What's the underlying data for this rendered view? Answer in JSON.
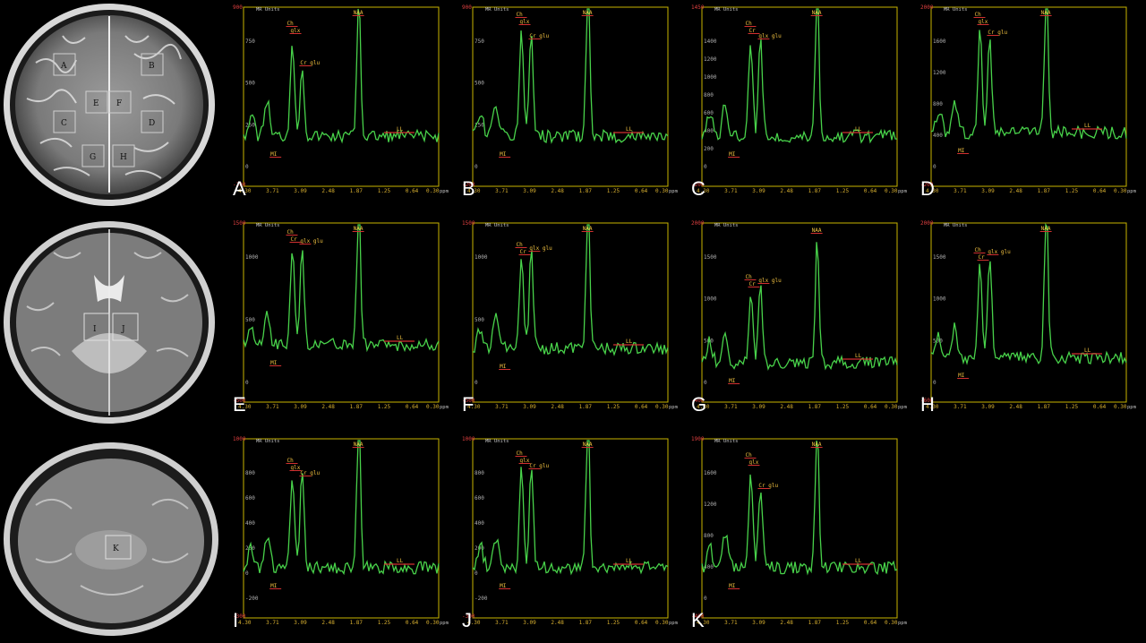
{
  "mri_images": [
    {
      "name": "mri-slice-top",
      "rois": [
        "A",
        "B",
        "C",
        "D",
        "E",
        "F",
        "G",
        "H"
      ]
    },
    {
      "name": "mri-slice-middle",
      "rois": [
        "I",
        "J"
      ]
    },
    {
      "name": "mri-slice-bottom",
      "rois": [
        "K"
      ]
    }
  ],
  "ppm_ticks": [
    "4.30",
    "3.71",
    "3.09",
    "2.48",
    "1.87",
    "1.25",
    "0.64",
    "0.30"
  ],
  "ppm_unit": "ppm",
  "y_unit": "MR Units",
  "colors": {
    "trace": "#48d24a",
    "frame": "#c8b400",
    "label": "#f0c040",
    "marker": "#d23030"
  },
  "spectra": [
    {
      "letter": "A",
      "ymax": "900",
      "ymin": "-200",
      "yticks": [
        "750",
        "500",
        "250",
        "0"
      ],
      "labels": {
        "naa": "NAA",
        "ch": "Ch",
        "cr": "glx",
        "glu": "Cr\nglu",
        "mi": "MI",
        "ll": "LL"
      }
    },
    {
      "letter": "B",
      "ymax": "900",
      "ymin": "-200",
      "yticks": [
        "750",
        "500",
        "250",
        "0"
      ],
      "labels": {
        "naa": "NAA",
        "ch": "Ch",
        "cr": "glx",
        "glu": "Cr glu",
        "mi": "MI",
        "ll": "LL"
      }
    },
    {
      "letter": "C",
      "ymax": "1450",
      "ymin": "-200",
      "yticks": [
        "1400",
        "1200",
        "1000",
        "800",
        "600",
        "400",
        "200",
        "0"
      ],
      "labels": {
        "naa": "NAA",
        "ch": "Ch",
        "cr": "Cr",
        "glu": "glx glu",
        "mi": "MI",
        "ll": "LL"
      }
    },
    {
      "letter": "D",
      "ymax": "2000",
      "ymin": "-200",
      "yticks": [
        "1600",
        "1200",
        "800",
        "400",
        "0"
      ],
      "labels": {
        "naa": "NAA",
        "ch": "Ch",
        "cr": "glx",
        "glu": "Cr glu",
        "mi": "MI",
        "ll": "LL"
      }
    },
    {
      "letter": "E",
      "ymax": "1500",
      "ymin": "-500",
      "yticks": [
        "1000",
        "500",
        "0"
      ],
      "labels": {
        "naa": "NAA",
        "ch": "Ch",
        "cr": "Cr",
        "glu": "glx glu",
        "mi": "MI",
        "ll": "LL"
      }
    },
    {
      "letter": "F",
      "ymax": "1500",
      "ymin": "-500",
      "yticks": [
        "1000",
        "500",
        "0"
      ],
      "labels": {
        "naa": "NAA",
        "ch": "Ch",
        "cr": "Cr",
        "glu": "glx glu",
        "mi": "MI",
        "ll": "LL"
      }
    },
    {
      "letter": "G",
      "ymax": "2000",
      "ymin": "-400",
      "yticks": [
        "1500",
        "1000",
        "500",
        "0"
      ],
      "labels": {
        "naa": "NAA",
        "ch": "Ch",
        "cr": "Cr",
        "glu": "glx glu",
        "mi": "MI",
        "ll": "LL"
      }
    },
    {
      "letter": "H",
      "ymax": "2000",
      "ymin": "-600",
      "yticks": [
        "1500",
        "1000",
        "500",
        "0"
      ],
      "labels": {
        "naa": "NAA",
        "ch": "Ch",
        "cr": "Cr",
        "glu": "glx glu",
        "mi": "MI",
        "ll": "LL"
      }
    },
    {
      "letter": "I",
      "ymax": "1000",
      "ymin": "-300",
      "yticks": [
        "800",
        "600",
        "400",
        "200",
        "0",
        "-200"
      ],
      "labels": {
        "naa": "NAA",
        "ch": "Ch",
        "cr": "glx",
        "glu": "Cr glu",
        "mi": "MI",
        "ll": "LL"
      }
    },
    {
      "letter": "J",
      "ymax": "1000",
      "ymin": "-300",
      "yticks": [
        "800",
        "600",
        "400",
        "200",
        "0",
        "-200"
      ],
      "labels": {
        "naa": "NAA",
        "ch": "Ch",
        "cr": "glx",
        "glu": "Cr glu",
        "mi": "MI",
        "ll": "LL"
      }
    },
    {
      "letter": "K",
      "ymax": "1900",
      "ymin": "-400",
      "yticks": [
        "1600",
        "1200",
        "800",
        "400",
        "0"
      ],
      "labels": {
        "naa": "NAA",
        "ch": "Ch",
        "cr": "glx",
        "glu": "Cr glu",
        "mi": "MI",
        "ll": "LL"
      }
    }
  ]
}
